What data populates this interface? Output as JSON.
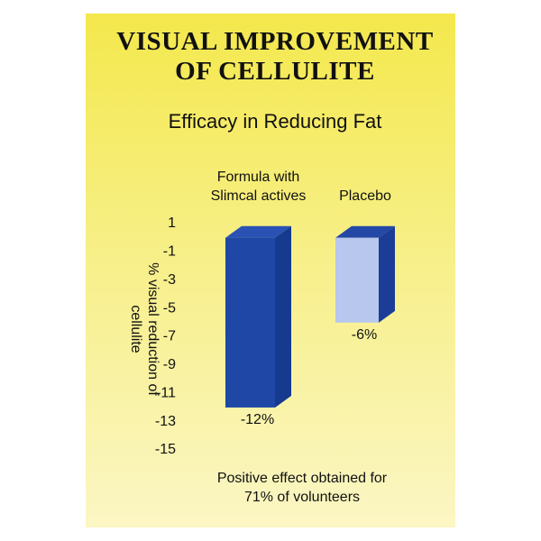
{
  "chart_data": {
    "type": "bar3d",
    "title": "VISUAL IMPROVEMENT OF CELLULITE",
    "subtitle": "Efficacy in Reducing Fat",
    "y_label": "% visual reduction of cellulite",
    "categories": [
      "Formula with Slimcal actives",
      "Placebo"
    ],
    "values": [
      -12,
      -6
    ],
    "value_labels": [
      "-12%",
      "-6%"
    ],
    "colors": [
      "#1f47a6",
      "#b8c7ee"
    ],
    "ylim": [
      -15,
      1
    ],
    "yticks": [
      1,
      -1,
      -3,
      -5,
      -7,
      -9,
      -11,
      -13,
      -15
    ],
    "annotation": "Positive effect obtained for 71% of volunteers"
  }
}
